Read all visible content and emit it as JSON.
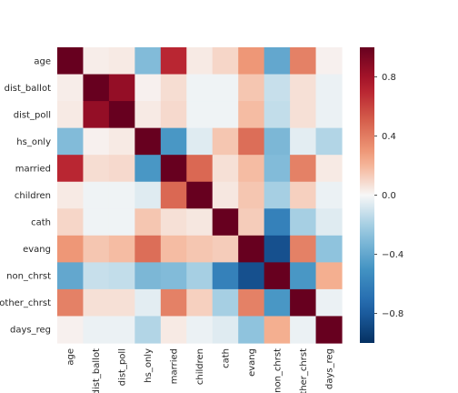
{
  "chart_data": {
    "type": "heatmap",
    "title": "",
    "xlabel": "",
    "ylabel": "",
    "labels": [
      "age",
      "dist_ballot",
      "dist_poll",
      "hs_only",
      "married",
      "children",
      "cath",
      "evang",
      "non_chrst",
      "other_chrst",
      "days_reg"
    ],
    "matrix": [
      [
        1.0,
        0.03,
        0.04,
        -0.3,
        0.7,
        0.04,
        0.1,
        0.3,
        -0.4,
        0.38,
        0.02
      ],
      [
        0.03,
        1.0,
        0.85,
        0.02,
        0.08,
        -0.02,
        -0.02,
        0.15,
        -0.12,
        0.07,
        -0.03
      ],
      [
        0.04,
        0.85,
        1.0,
        0.04,
        0.09,
        -0.02,
        -0.02,
        0.18,
        -0.13,
        0.07,
        -0.03
      ],
      [
        -0.3,
        0.02,
        0.04,
        1.0,
        -0.48,
        -0.06,
        0.15,
        0.45,
        -0.32,
        -0.05,
        -0.17
      ],
      [
        0.7,
        0.08,
        0.09,
        -0.48,
        1.0,
        0.47,
        0.07,
        0.18,
        -0.3,
        0.38,
        0.04
      ],
      [
        0.04,
        -0.02,
        -0.02,
        -0.06,
        0.47,
        1.0,
        0.05,
        0.15,
        -0.2,
        0.12,
        -0.03
      ],
      [
        0.1,
        -0.02,
        -0.02,
        0.15,
        0.07,
        0.05,
        1.0,
        0.13,
        -0.6,
        -0.2,
        -0.06
      ],
      [
        0.3,
        0.15,
        0.18,
        0.45,
        0.18,
        0.15,
        0.13,
        1.0,
        -0.85,
        0.38,
        -0.26
      ],
      [
        -0.4,
        -0.12,
        -0.13,
        -0.32,
        -0.3,
        -0.2,
        -0.6,
        -0.85,
        1.0,
        -0.48,
        0.22
      ],
      [
        0.38,
        0.07,
        0.07,
        -0.05,
        0.38,
        0.12,
        -0.2,
        0.38,
        -0.48,
        1.0,
        -0.03
      ],
      [
        0.02,
        -0.03,
        -0.03,
        -0.17,
        0.04,
        -0.03,
        -0.06,
        -0.26,
        0.22,
        -0.03,
        1.0
      ]
    ],
    "vmin": -1.0,
    "vmax": 1.0,
    "colormap": "RdBu_r",
    "colorbar_ticks": [
      "0.8",
      "0.4",
      "0.0",
      "−0.4",
      "−0.8"
    ],
    "colorbar_values": [
      0.8,
      0.4,
      0.0,
      -0.4,
      -0.8
    ],
    "grid": false
  }
}
